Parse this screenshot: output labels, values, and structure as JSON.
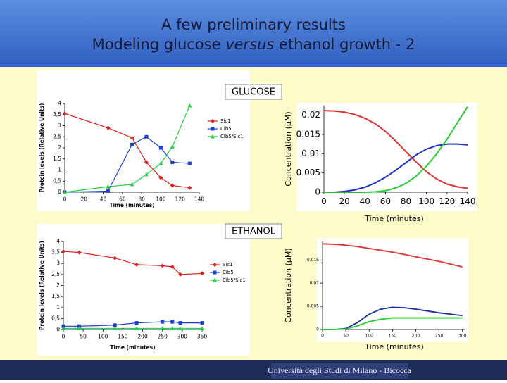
{
  "header": {
    "title_line1": "A few preliminary results",
    "title_line2_a": "Modeling glucose ",
    "title_line2_b": "versus",
    "title_line2_c": " ethanol growth - 2"
  },
  "sections": [
    "GLUCOSE",
    "ETHANOL"
  ],
  "footer": "Università degli Studi di Milano - Bicocca",
  "chart_data": [
    {
      "type": "line",
      "xlabel": "Time (minutes)",
      "ylabel": "Protein levels (Relative Units)",
      "x": [
        0,
        45,
        70,
        85,
        100,
        112,
        130
      ],
      "xlim": [
        0,
        140
      ],
      "xticks": [
        0,
        20,
        40,
        60,
        80,
        100,
        120,
        140
      ],
      "ylim": [
        0,
        4
      ],
      "yticks": [
        0,
        {
          "value": 0.5,
          "label": "0,5"
        },
        1,
        {
          "value": 1.5,
          "label": "1,5"
        },
        2,
        {
          "value": 2.5,
          "label": "2,5"
        },
        3,
        {
          "value": 3.5,
          "label": "3,5"
        },
        4
      ],
      "series": [
        {
          "name": "Sic1",
          "color": "#e0201a",
          "marker": "diamond",
          "values": [
            3.55,
            2.9,
            2.45,
            1.35,
            0.65,
            0.3,
            0.2
          ]
        },
        {
          "name": "Clb5",
          "color": "#1a3fd0",
          "marker": "square",
          "values": [
            0,
            0.05,
            2.15,
            2.5,
            2.0,
            1.35,
            1.3
          ]
        },
        {
          "name": "Clb5/Sic1",
          "color": "#22d040",
          "marker": "triangle",
          "values": [
            0,
            0.25,
            0.35,
            0.8,
            1.3,
            2.05,
            3.9
          ]
        }
      ]
    },
    {
      "type": "line",
      "ylabel": "Concentration (μM)",
      "xlabel": "Time (minutes)",
      "x": [
        0,
        10,
        20,
        30,
        40,
        50,
        60,
        70,
        80,
        90,
        100,
        110,
        120,
        130,
        140
      ],
      "xlim": [
        0,
        140
      ],
      "xticks": [
        0,
        20,
        40,
        60,
        80,
        100,
        120,
        140
      ],
      "ylim": [
        0,
        0.0225
      ],
      "yticks": [
        0,
        0.005,
        0.01,
        0.015,
        0.02
      ],
      "series": [
        {
          "color": "#e03030",
          "values": [
            0.0212,
            0.0211,
            0.0208,
            0.0202,
            0.0192,
            0.0178,
            0.0158,
            0.0133,
            0.0105,
            0.0078,
            0.0053,
            0.0034,
            0.0021,
            0.0014,
            0.001
          ]
        },
        {
          "color": "#2030c0",
          "values": [
            0,
            0,
            0.0002,
            0.0006,
            0.0013,
            0.0024,
            0.0039,
            0.0057,
            0.0077,
            0.0097,
            0.0112,
            0.0121,
            0.0125,
            0.0125,
            0.0123
          ]
        },
        {
          "color": "#20d030",
          "values": [
            0,
            0,
            0,
            0,
            0,
            0.0001,
            0.0004,
            0.0011,
            0.0023,
            0.0042,
            0.0068,
            0.01,
            0.0138,
            0.018,
            0.0222
          ]
        }
      ]
    },
    {
      "type": "line",
      "xlabel": "Time (minutes)",
      "ylabel": "Protein levels (Relative Units)",
      "x": [
        0,
        40,
        130,
        185,
        250,
        275,
        295,
        350
      ],
      "xlim": [
        0,
        350
      ],
      "xticks": [
        0,
        50,
        100,
        150,
        200,
        250,
        300,
        350
      ],
      "ylim": [
        0,
        4
      ],
      "yticks": [
        0,
        {
          "value": 0.5,
          "label": "0,5"
        },
        1,
        {
          "value": 1.5,
          "label": "1,5"
        },
        2,
        {
          "value": 2.5,
          "label": "2,5"
        },
        3,
        {
          "value": 3.5,
          "label": "3,5"
        },
        4
      ],
      "series": [
        {
          "name": "Sic1",
          "color": "#e0201a",
          "marker": "diamond",
          "values": [
            3.55,
            3.5,
            3.25,
            2.95,
            2.9,
            2.85,
            2.5,
            2.55
          ]
        },
        {
          "name": "Clb5",
          "color": "#1a3fd0",
          "marker": "square",
          "values": [
            0.15,
            0.15,
            0.2,
            0.3,
            0.35,
            0.35,
            0.3,
            0.3
          ]
        },
        {
          "name": "Clb5/Sic1",
          "color": "#22d040",
          "marker": "triangle",
          "values": [
            0.05,
            0.05,
            0.05,
            0.05,
            0.05,
            0.05,
            0.05,
            0.05
          ]
        }
      ]
    },
    {
      "type": "line",
      "ylabel": "Concentration (μM)",
      "xlabel": "Time (minutes)",
      "x": [
        0,
        25,
        50,
        75,
        100,
        125,
        150,
        175,
        200,
        225,
        250,
        275,
        300
      ],
      "xlim": [
        0,
        305
      ],
      "xticks": [
        0,
        50,
        100,
        150,
        200,
        250,
        300
      ],
      "ylim": [
        0,
        0.019
      ],
      "yticks": [
        0,
        0.005,
        0.01,
        0.015
      ],
      "series": [
        {
          "color": "#e03030",
          "values": [
            0.0185,
            0.0184,
            0.0182,
            0.0179,
            0.0175,
            0.0171,
            0.0167,
            0.0162,
            0.0157,
            0.0152,
            0.0147,
            0.0141,
            0.0135
          ]
        },
        {
          "color": "#2030a0",
          "values": [
            0,
            0,
            0.0002,
            0.0015,
            0.0033,
            0.0044,
            0.0048,
            0.0047,
            0.0044,
            0.004,
            0.0036,
            0.0033,
            0.003
          ]
        },
        {
          "color": "#20d030",
          "values": [
            0,
            0,
            0.0001,
            0.0008,
            0.0017,
            0.0022,
            0.0025,
            0.0025,
            0.0025,
            0.0025,
            0.0025,
            0.0025,
            0.0025
          ]
        }
      ]
    }
  ]
}
